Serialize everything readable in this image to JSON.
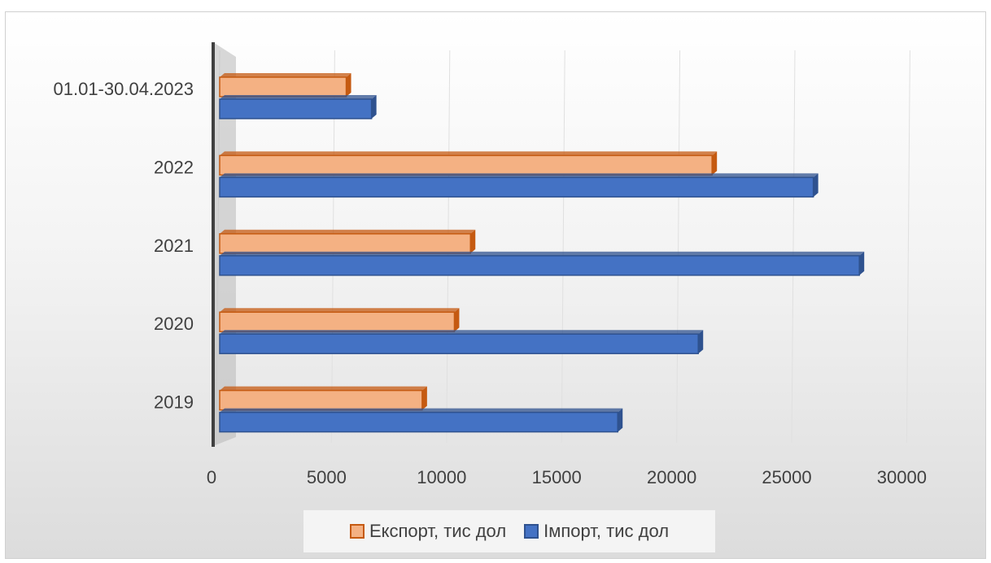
{
  "chart_data": {
    "type": "bar",
    "orientation": "horizontal",
    "style": "3d-clustered",
    "categories": [
      "2019",
      "2020",
      "2021",
      "2022",
      "01.01-30.04.2023"
    ],
    "series": [
      {
        "name": "Імпорт, тис дол",
        "values": [
          17300,
          20800,
          27800,
          25800,
          6600
        ],
        "color": "#4472c4",
        "edge": "#2f528f"
      },
      {
        "name": "Експорт, тис дол",
        "values": [
          8800,
          10200,
          10900,
          21400,
          5500
        ],
        "color": "#f4b183",
        "edge": "#c55a11"
      }
    ],
    "xlim": [
      0,
      30000
    ],
    "xticks": [
      0,
      5000,
      10000,
      15000,
      20000,
      25000,
      30000
    ],
    "xtick_labels": [
      "0",
      "5000",
      "10000",
      "15000",
      "20000",
      "25000",
      "30000"
    ],
    "grid": true,
    "legend": {
      "position": "bottom",
      "order": [
        "Експорт, тис дол",
        "Імпорт, тис дол"
      ]
    }
  }
}
